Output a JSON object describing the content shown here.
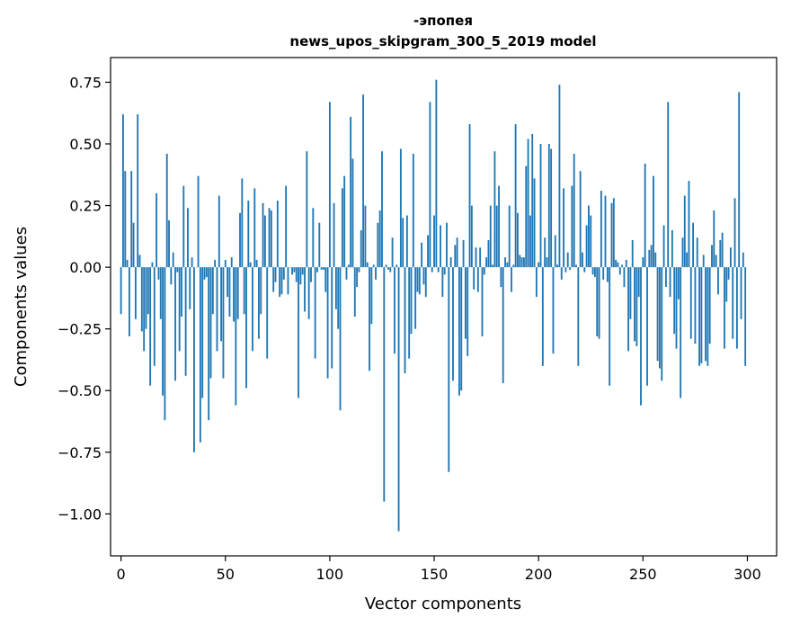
{
  "chart_data": {
    "type": "bar",
    "title_line1": "-эпопея",
    "title_line2": "news_upos_skipgram_300_5_2019 model",
    "xlabel": "Vector components",
    "ylabel": "Components values",
    "xlim": [
      -5,
      314
    ],
    "ylim": [
      -1.17,
      0.85
    ],
    "bar_color": "#1f77b4",
    "x_ticks": [
      {
        "value": 0,
        "label": "0"
      },
      {
        "value": 50,
        "label": "50"
      },
      {
        "value": 100,
        "label": "100"
      },
      {
        "value": 150,
        "label": "150"
      },
      {
        "value": 200,
        "label": "200"
      },
      {
        "value": 250,
        "label": "250"
      },
      {
        "value": 300,
        "label": "300"
      }
    ],
    "y_ticks": [
      {
        "value": 0.75,
        "label": "0.75"
      },
      {
        "value": 0.5,
        "label": "0.50"
      },
      {
        "value": 0.25,
        "label": "0.25"
      },
      {
        "value": 0.0,
        "label": "0.00"
      },
      {
        "value": -0.25,
        "label": "−0.25"
      },
      {
        "value": -0.5,
        "label": "−0.50"
      },
      {
        "value": -0.75,
        "label": "−0.75"
      },
      {
        "value": -1.0,
        "label": "−1.00"
      }
    ],
    "values": [
      -0.19,
      0.62,
      0.39,
      0.03,
      -0.28,
      0.39,
      0.18,
      -0.21,
      0.62,
      0.05,
      -0.26,
      -0.34,
      -0.25,
      -0.19,
      -0.48,
      0.02,
      -0.4,
      0.3,
      -0.05,
      -0.21,
      -0.52,
      -0.62,
      0.46,
      0.19,
      -0.07,
      0.06,
      -0.46,
      -0.02,
      -0.34,
      -0.2,
      0.33,
      -0.44,
      0.24,
      -0.17,
      0.04,
      -0.75,
      0.0,
      0.37,
      -0.71,
      -0.53,
      -0.05,
      -0.04,
      -0.62,
      -0.45,
      -0.19,
      0.03,
      -0.34,
      0.29,
      -0.3,
      -0.45,
      0.03,
      -0.12,
      -0.2,
      0.04,
      -0.22,
      -0.56,
      -0.21,
      0.22,
      0.36,
      -0.19,
      -0.49,
      0.27,
      0.02,
      -0.34,
      0.32,
      0.03,
      -0.29,
      -0.19,
      0.26,
      0.21,
      -0.37,
      0.24,
      0.23,
      -0.1,
      -0.06,
      0.27,
      -0.12,
      -0.11,
      -0.05,
      0.33,
      -0.11,
      0.0,
      -0.03,
      -0.02,
      -0.06,
      -0.53,
      -0.07,
      -0.03,
      -0.18,
      0.47,
      -0.21,
      -0.06,
      0.24,
      -0.37,
      -0.02,
      0.18,
      -0.01,
      -0.01,
      -0.1,
      -0.45,
      0.67,
      -0.41,
      0.26,
      -0.17,
      -0.25,
      -0.58,
      0.32,
      0.37,
      -0.05,
      0.01,
      0.61,
      0.44,
      -0.2,
      -0.08,
      -0.02,
      0.15,
      0.7,
      0.25,
      0.02,
      -0.42,
      -0.23,
      0.01,
      -0.05,
      0.18,
      0.23,
      0.47,
      -0.95,
      0.01,
      -0.01,
      -0.02,
      0.12,
      -0.35,
      0.01,
      -1.07,
      0.48,
      0.2,
      -0.43,
      0.21,
      -0.37,
      -0.27,
      0.46,
      -0.25,
      -0.1,
      -0.11,
      0.1,
      -0.07,
      -0.12,
      0.13,
      0.67,
      -0.02,
      0.21,
      0.76,
      -0.02,
      0.17,
      -0.12,
      -0.03,
      0.18,
      -0.83,
      0.04,
      -0.46,
      0.09,
      0.12,
      -0.52,
      -0.5,
      0.11,
      -0.29,
      -0.36,
      0.58,
      0.25,
      -0.09,
      0.08,
      -0.1,
      0.08,
      -0.28,
      -0.03,
      0.04,
      0.11,
      0.25,
      0.01,
      0.47,
      0.25,
      0.33,
      -0.08,
      -0.47,
      0.04,
      0.02,
      0.25,
      -0.1,
      0.01,
      0.58,
      0.22,
      0.05,
      0.04,
      0.04,
      0.41,
      0.52,
      0.21,
      0.54,
      0.36,
      -0.12,
      0.02,
      0.5,
      -0.4,
      0.12,
      0.04,
      0.5,
      0.48,
      -0.35,
      0.13,
      0.01,
      0.74,
      -0.05,
      0.32,
      -0.02,
      0.06,
      -0.01,
      0.33,
      0.46,
      0.01,
      -0.4,
      0.39,
      0.06,
      -0.02,
      0.17,
      0.25,
      0.21,
      -0.03,
      -0.04,
      -0.28,
      -0.29,
      0.31,
      -0.05,
      0.29,
      -0.06,
      -0.48,
      0.26,
      0.28,
      0.03,
      0.02,
      -0.03,
      0.01,
      -0.08,
      0.03,
      -0.34,
      -0.21,
      0.11,
      -0.3,
      -0.32,
      -0.12,
      -0.56,
      0.04,
      0.42,
      -0.48,
      0.07,
      0.09,
      0.37,
      0.06,
      -0.38,
      -0.41,
      -0.46,
      0.17,
      -0.08,
      0.67,
      -0.12,
      0.15,
      -0.27,
      -0.33,
      -0.13,
      -0.53,
      0.12,
      0.29,
      0.06,
      0.35,
      -0.29,
      0.18,
      -0.31,
      0.12,
      -0.4,
      -0.39,
      0.05,
      -0.38,
      -0.4,
      -0.31,
      0.09,
      0.23,
      0.05,
      -0.11,
      0.11,
      0.14,
      -0.33,
      -0.14,
      -0.05,
      0.08,
      -0.29,
      0.28,
      -0.33,
      0.71,
      -0.21,
      0.06,
      -0.4
    ]
  }
}
